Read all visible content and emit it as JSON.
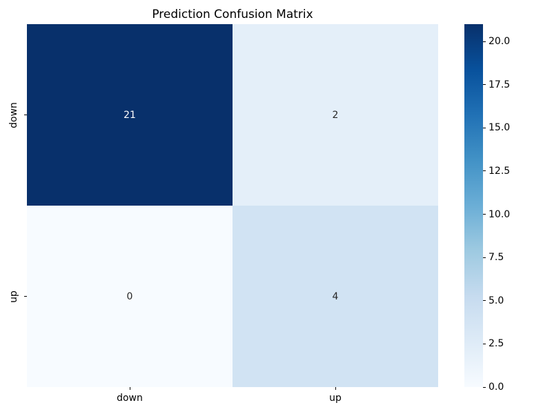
{
  "figure": {
    "background_color": "#ffffff",
    "title": "Prediction Confusion Matrix"
  },
  "chart_data": {
    "type": "heatmap",
    "title": "Prediction Confusion Matrix",
    "xlabel": "",
    "ylabel": "",
    "x_categories": [
      "down",
      "up"
    ],
    "y_categories": [
      "down",
      "up"
    ],
    "values": [
      [
        21,
        2
      ],
      [
        0,
        4
      ]
    ],
    "vmin": 0,
    "vmax": 21,
    "colormap": "Blues",
    "colormap_stops": [
      "#f7fbff",
      "#deebf7",
      "#c6dbef",
      "#9ecae1",
      "#6baed6",
      "#4292c6",
      "#2171b5",
      "#08519c",
      "#08306b"
    ],
    "cells": [
      {
        "row": "down",
        "col": "down",
        "value": "21",
        "bg": "#08306b",
        "text_color": "#ffffff"
      },
      {
        "row": "down",
        "col": "up",
        "value": "2",
        "bg": "#e4eff9",
        "text_color": "#262626"
      },
      {
        "row": "up",
        "col": "down",
        "value": "0",
        "bg": "#f7fbff",
        "text_color": "#262626"
      },
      {
        "row": "up",
        "col": "up",
        "value": "4",
        "bg": "#d1e3f3",
        "text_color": "#262626"
      }
    ],
    "colorbar": {
      "position": "right",
      "ticks": [
        {
          "value": 0,
          "label": "0.0"
        },
        {
          "value": 2.5,
          "label": "2.5"
        },
        {
          "value": 5,
          "label": "5.0"
        },
        {
          "value": 7.5,
          "label": "7.5"
        },
        {
          "value": 10,
          "label": "10.0"
        },
        {
          "value": 12.5,
          "label": "12.5"
        },
        {
          "value": 15,
          "label": "15.0"
        },
        {
          "value": 17.5,
          "label": "17.5"
        },
        {
          "value": 20,
          "label": "20.0"
        }
      ]
    },
    "grid": false,
    "legend": false
  }
}
